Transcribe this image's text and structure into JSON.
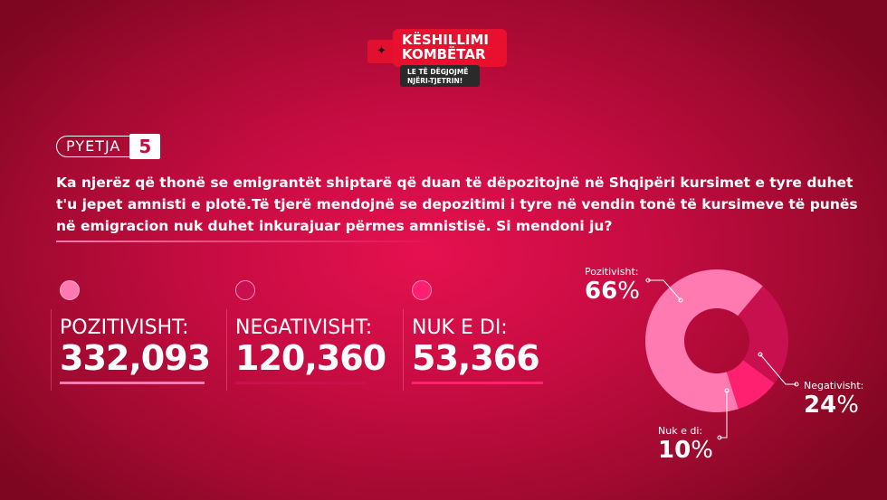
{
  "logo": {
    "line1": "KËSHILLIMI",
    "line2": "KOMBËTAR",
    "tag1": "LE TË DËGJOJMË",
    "tag2": "NJËRI-TJETRIN!",
    "flag_icon": "albanian-eagle-icon"
  },
  "question": {
    "label": "PYETJA",
    "number": "5",
    "text": "Ka njerëz që thonë se emigrantët shiptarë që duan të dëpozitojnë në Shqipëri kursimet e tyre duhet t'u jepet amnisti e plotë.Të tjerë mendojnë se depozitimi i tyre në vendin tonë të kursimeve të punës në emigracion nuk duhet inkurajuar përmes amnistisë. Si mendoni ju?"
  },
  "stats": [
    {
      "label": "POZITIVISHT:",
      "value": "332,093",
      "color": "#ff7ab0"
    },
    {
      "label": "NEGATIVISHT:",
      "value": "120,360",
      "color": "#c8104f"
    },
    {
      "label": "NUK E DI:",
      "value": "53,366",
      "color": "#ff2070"
    }
  ],
  "chart_data": {
    "type": "pie",
    "categories": [
      "Pozitivisht:",
      "Negativisht:",
      "Nuk e di:"
    ],
    "values": [
      66,
      24,
      10
    ],
    "labels": [
      "66",
      "24",
      "10"
    ],
    "unit": "%",
    "colors": [
      "#ff7ab0",
      "#c8104f",
      "#ff2070"
    ]
  }
}
